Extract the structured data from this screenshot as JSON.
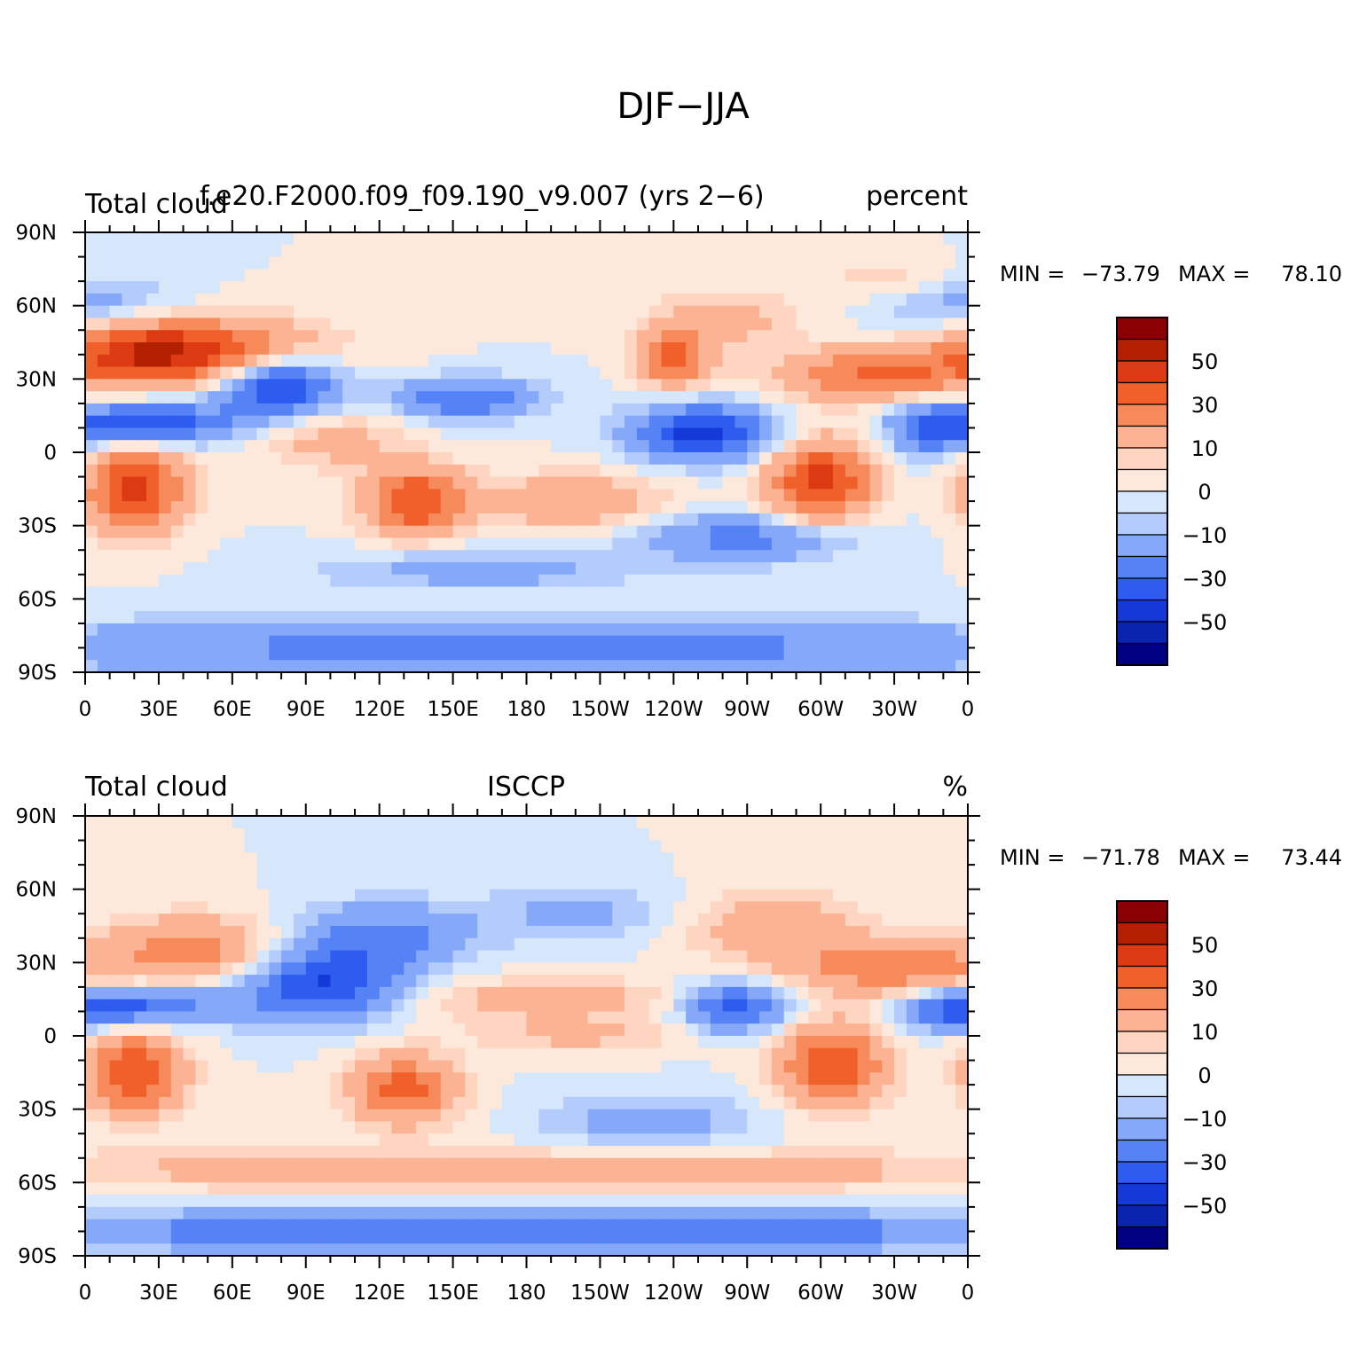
{
  "main_title": "DJF−JJA",
  "x_ticks": [
    "0",
    "30E",
    "60E",
    "90E",
    "120E",
    "150E",
    "180",
    "150W",
    "120W",
    "90W",
    "60W",
    "30W",
    "0"
  ],
  "y_ticks": [
    "90N",
    "60N",
    "30N",
    "0",
    "30S",
    "60S",
    "90S"
  ],
  "colorbar_labels": [
    "50",
    "30",
    "10",
    "0",
    "−10",
    "−30",
    "−50"
  ],
  "colorbar_colors": [
    "#8b0000",
    "#b22000",
    "#dc3a12",
    "#f0602a",
    "#f78a5a",
    "#fbb393",
    "#fdd5c0",
    "#fde9db",
    "#d6e6fb",
    "#b3ccfb",
    "#86a8f8",
    "#5583f5",
    "#2d5cef",
    "#1339d8",
    "#0b24b0",
    "#000080"
  ],
  "panels": [
    {
      "left_title": "Total cloud",
      "center_title": "f.e20.F2000.f09_f09.190_v9.007 (yrs 2−6)",
      "right_title": "percent",
      "min_label": "MIN =",
      "min_value": "−73.79",
      "max_label": "MAX =",
      "max_value": "78.10"
    },
    {
      "left_title": "Total cloud",
      "center_title": "ISCCP",
      "right_title": "%",
      "min_label": "MIN =",
      "min_value": "−71.78",
      "max_label": "MAX =",
      "max_value": "73.44"
    }
  ]
}
